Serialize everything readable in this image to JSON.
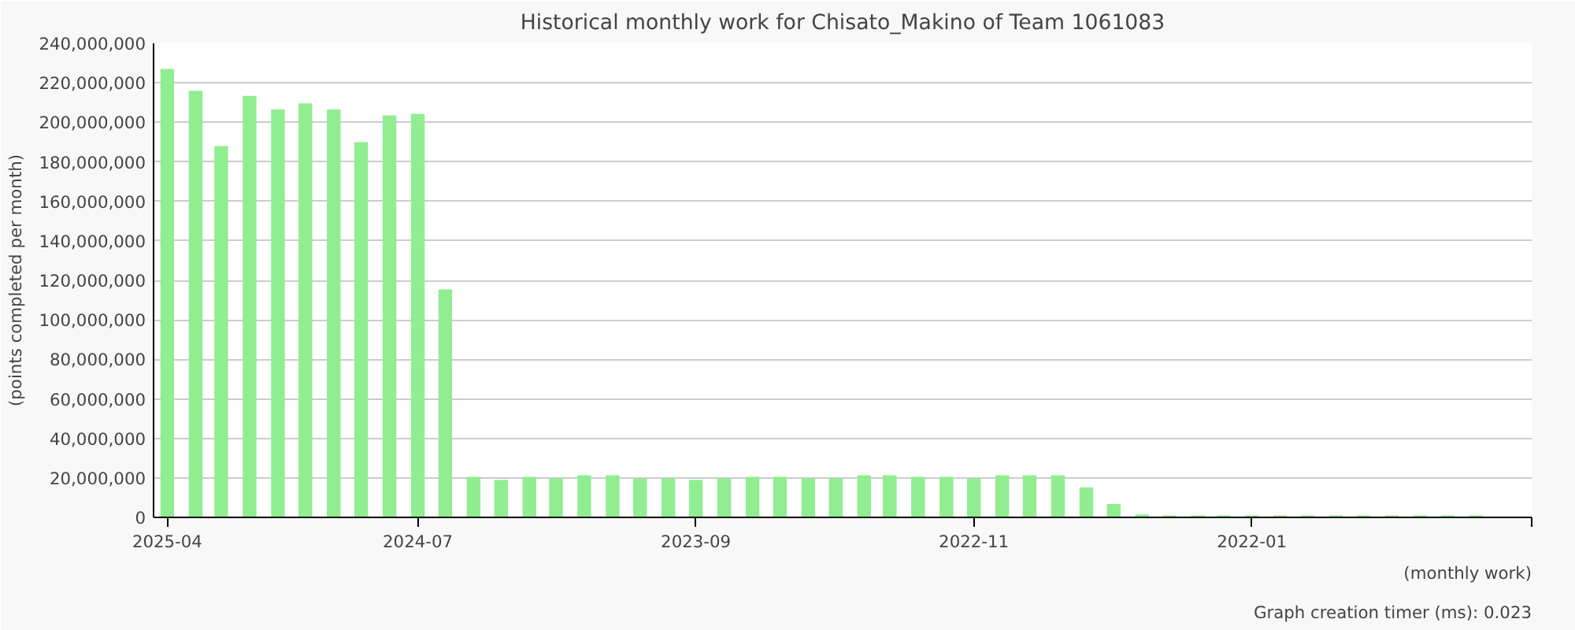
{
  "chart_data": {
    "type": "bar",
    "title": "Historical monthly work for Chisato_Makino of Team 1061083",
    "xlabel": "(monthly work)",
    "ylabel": "(points completed per month)",
    "annotations": [
      "Graph creation timer (ms): 0.023"
    ],
    "x": [
      "2025-04",
      "2025-03",
      "2025-02",
      "2025-01",
      "2024-12",
      "2024-11",
      "2024-10",
      "2024-09",
      "2024-08",
      "2024-07",
      "2024-06",
      "2024-05",
      "2024-04",
      "2024-03",
      "2024-02",
      "2024-01",
      "2023-12",
      "2023-11",
      "2023-10",
      "2023-09",
      "2023-08",
      "2023-07",
      "2023-06",
      "2023-05",
      "2023-04",
      "2023-03",
      "2023-02",
      "2023-01",
      "2022-12",
      "2022-11",
      "2022-10",
      "2022-09",
      "2022-08",
      "2022-07",
      "2022-06",
      "2022-05",
      "2022-04",
      "2022-03",
      "2022-02",
      "2022-01",
      "2021-12",
      "2021-11",
      "2021-10",
      "2021-09",
      "2021-08",
      "2021-07",
      "2021-06",
      "2021-05"
    ],
    "values": [
      227000000,
      216000000,
      188000000,
      213400000,
      206500000,
      209600000,
      206500000,
      190000000,
      203500000,
      204300000,
      115400000,
      20500000,
      19000000,
      20500000,
      19700000,
      21300000,
      21300000,
      19700000,
      19700000,
      19000000,
      19700000,
      20500000,
      20500000,
      19700000,
      19700000,
      21300000,
      21300000,
      20500000,
      20500000,
      19700000,
      21300000,
      21300000,
      21300000,
      15200000,
      6800000,
      1500000,
      1000000,
      1000000,
      1000000,
      1000000,
      1000000,
      1000000,
      1000000,
      1000000,
      1000000,
      1000000,
      1000000,
      1000000
    ],
    "color": "#90ee90",
    "xlim": [
      "2025-04-16",
      "2021-03-01"
    ],
    "xticks": [
      "2025-04",
      "2024-07",
      "2023-09",
      "2022-11",
      "2022-01",
      {
        "value": "2021-03",
        "label": null
      }
    ],
    "ylim": [
      0,
      240000000
    ],
    "yticks": [
      {
        "value": 0,
        "label": "0"
      },
      {
        "value": 20000000,
        "label": "20,000,000"
      },
      {
        "value": 40000000,
        "label": "40,000,000"
      },
      {
        "value": 60000000,
        "label": "60,000,000"
      },
      {
        "value": 80000000,
        "label": "80,000,000"
      },
      {
        "value": 100000000,
        "label": "100,000,000"
      },
      {
        "value": 120000000,
        "label": "120,000,000"
      },
      {
        "value": 140000000,
        "label": "140,000,000"
      },
      {
        "value": 160000000,
        "label": "160,000,000"
      },
      {
        "value": 180000000,
        "label": "180,000,000"
      },
      {
        "value": 200000000,
        "label": "200,000,000"
      },
      {
        "value": 220000000,
        "label": "220,000,000"
      },
      {
        "value": 240000000,
        "label": "240,000,000"
      }
    ],
    "grid": "y"
  }
}
